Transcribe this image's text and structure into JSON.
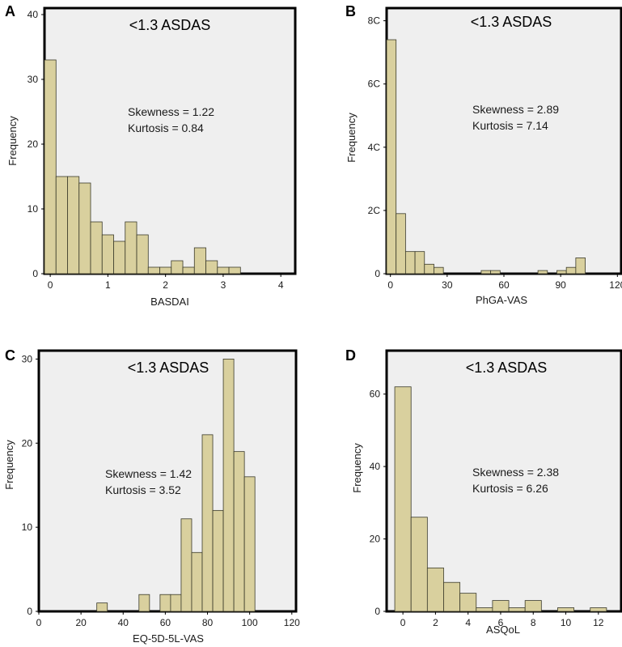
{
  "chart_data": [
    {
      "panel": "A",
      "type": "bar",
      "title": "<1.3 ASDAS",
      "xlabel": "BASDAI",
      "ylabel": "Frequency",
      "skewness": "Skewness = 1.22",
      "kurtosis": "Kurtosis = 0.84",
      "xlim": [
        -0.1,
        4.25
      ],
      "ylim": [
        0,
        41
      ],
      "xticks": [
        "0",
        "1",
        "2",
        "3",
        "4"
      ],
      "xtick_values": [
        0,
        1,
        2,
        3,
        4
      ],
      "yticks": [
        "0",
        "10",
        "20",
        "30",
        "40"
      ],
      "ytick_values": [
        0,
        10,
        20,
        30,
        40
      ],
      "bin_start": -0.1,
      "bin_width": 0.2,
      "values": [
        33,
        15,
        15,
        14,
        8,
        6,
        5,
        8,
        6,
        1,
        1,
        2,
        1,
        4,
        2,
        1,
        1
      ]
    },
    {
      "panel": "B",
      "type": "bar",
      "title": "<1.3 ASDAS",
      "xlabel": "PhGA-VAS",
      "ylabel": "Frequency",
      "skewness": "Skewness = 2.89",
      "kurtosis": "Kurtosis = 7.14",
      "xlim": [
        -2,
        122
      ],
      "ylim": [
        0,
        84
      ],
      "xticks": [
        "0",
        "30",
        "60",
        "90",
        "120"
      ],
      "xtick_values": [
        0,
        30,
        60,
        90,
        120
      ],
      "yticks": [
        "0",
        "2C",
        "4C",
        "6C",
        "8C"
      ],
      "ytick_values": [
        0,
        20,
        40,
        60,
        80
      ],
      "bin_start": -2,
      "bin_width": 5,
      "values": [
        74,
        19,
        7,
        7,
        3,
        2,
        0,
        0,
        0,
        0,
        1,
        1,
        0,
        0,
        0,
        0,
        1,
        0,
        1,
        2,
        5
      ]
    },
    {
      "panel": "C",
      "type": "bar",
      "title": "<1.3 ASDAS",
      "xlabel": "EQ-5D-5L-VAS",
      "ylabel": "Frequency",
      "skewness": "Skewness = 1.42",
      "kurtosis": "Kurtosis = 3.52",
      "xlim": [
        0,
        122
      ],
      "ylim": [
        0,
        31
      ],
      "xticks": [
        "0",
        "20",
        "40",
        "60",
        "80",
        "100",
        "120"
      ],
      "xtick_values": [
        0,
        20,
        40,
        60,
        80,
        100,
        120
      ],
      "yticks": [
        "0",
        "10",
        "20",
        "30"
      ],
      "ytick_values": [
        0,
        10,
        20,
        30
      ],
      "bin_start": 27.5,
      "bin_width": 5,
      "values": [
        1,
        0,
        0,
        0,
        2,
        0,
        2,
        2,
        11,
        7,
        21,
        12,
        30,
        19,
        16
      ]
    },
    {
      "panel": "D",
      "type": "bar",
      "title": "<1.3 ASDAS",
      "xlabel": "ASQoL",
      "ylabel": "Frequency",
      "skewness": "Skewness = 2.38",
      "kurtosis": "Kurtosis = 6.26",
      "xlim": [
        -1,
        13.4
      ],
      "ylim": [
        0,
        72
      ],
      "xticks": [
        "0",
        "2",
        "4",
        "6",
        "8",
        "10",
        "12"
      ],
      "xtick_values": [
        0,
        2,
        4,
        6,
        8,
        10,
        12
      ],
      "yticks": [
        "0",
        "20",
        "40",
        "60"
      ],
      "ytick_values": [
        0,
        20,
        40,
        60
      ],
      "bin_start": -0.5,
      "bin_width": 1,
      "values": [
        62,
        26,
        12,
        8,
        5,
        1,
        3,
        1,
        3,
        0,
        1,
        0,
        1
      ]
    }
  ]
}
